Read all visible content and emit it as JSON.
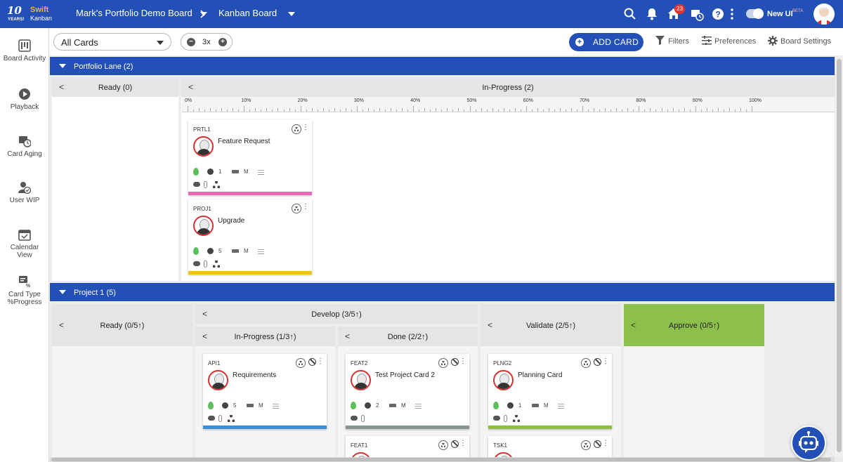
{
  "brand": {
    "years": "10",
    "years_sub": "YEARS!",
    "swift": "Swift",
    "kanban": "Kanban"
  },
  "breadcrumb": {
    "board": "Mark's Portfolio Demo Board",
    "view": "Kanban Board"
  },
  "header": {
    "notification_count": "23",
    "new_ui_label": "New UI",
    "beta_label": "BETA"
  },
  "sidebar": {
    "items": [
      {
        "label": "Board Activity",
        "icon": "board-activity-icon"
      },
      {
        "label": "Playback",
        "icon": "playback-icon"
      },
      {
        "label": "Card Aging",
        "icon": "card-aging-icon"
      },
      {
        "label": "User WIP",
        "icon": "user-wip-icon"
      },
      {
        "label": "Calendar View",
        "icon": "calendar-icon"
      },
      {
        "label": "Card Type %Progress",
        "icon": "card-type-progress-icon"
      }
    ]
  },
  "toolbar": {
    "card_filter": "All Cards",
    "zoom_value": "3x",
    "add_card": "ADD CARD",
    "filters": "Filters",
    "preferences": "Preferences",
    "board_settings": "Board Settings"
  },
  "lanes": {
    "portfolio": {
      "title": "Portfolio Lane (2)",
      "columns": {
        "ready": "Ready (0)",
        "in_progress": "In-Progress (2)"
      },
      "progress_ruler": [
        "0%",
        "10%",
        "20%",
        "30%",
        "40%",
        "50%",
        "60%",
        "70%",
        "80%",
        "90%",
        "100%"
      ],
      "cards": [
        {
          "id": "PRTL1",
          "title": "Feature Request",
          "count": "1",
          "size": "M",
          "color": "#e86ab5"
        },
        {
          "id": "PROJ1",
          "title": "Upgrade",
          "count": "5",
          "size": "M",
          "color": "#f2c21b"
        }
      ]
    },
    "project1": {
      "title": "Project 1 (5)",
      "columns": {
        "ready": "Ready (0/5↑)",
        "develop": "Develop (3/5↑)",
        "in_progress": "In-Progress (1/3↑)",
        "done": "Done (2/2↑)",
        "validate": "Validate (2/5↑)",
        "approve": "Approve (0/5↑)"
      },
      "cards": [
        {
          "id": "API1",
          "title": "Requirements",
          "count": "5",
          "size": "M",
          "color": "#3a8fdc"
        },
        {
          "id": "FEAT2",
          "title": "Test Project Card 2",
          "count": "2",
          "size": "M",
          "color": "#8a9497"
        },
        {
          "id": "PLNG2",
          "title": "Planning Card",
          "count": "1",
          "size": "M",
          "color": "#8dbf3f"
        },
        {
          "id": "FEAT1",
          "title": "",
          "count": "",
          "size": "",
          "color": "#ffffff"
        },
        {
          "id": "TSK1",
          "title": "",
          "count": "",
          "size": "",
          "color": "#ffffff"
        }
      ]
    }
  },
  "colors": {
    "primary": "#2350b7",
    "approve_column": "#8dbf4c"
  }
}
